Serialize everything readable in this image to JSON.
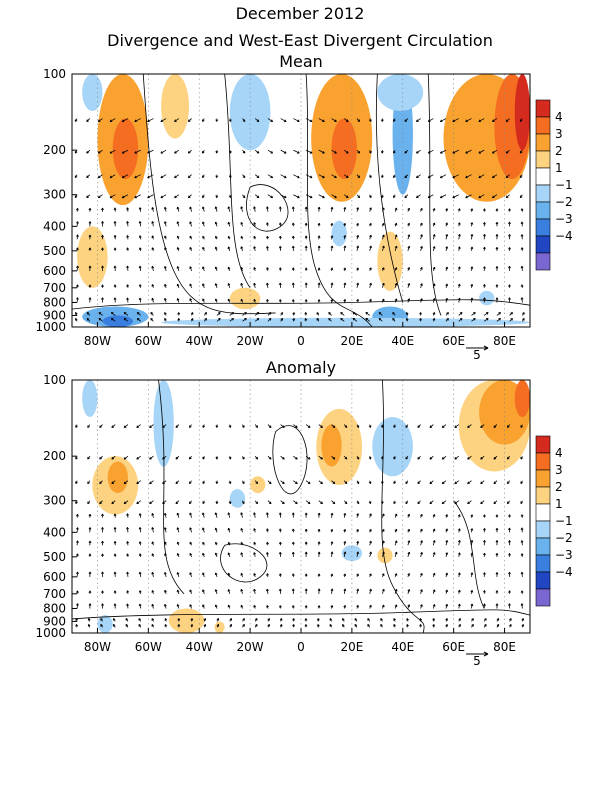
{
  "title_line1": "December 2012",
  "title_line2": "Divergence and West-East Divergent Circulation",
  "chart_data": [
    {
      "type": "heatmap",
      "panel_title": "Mean",
      "xticks": [
        "80W",
        "60W",
        "40W",
        "20W",
        "0",
        "20E",
        "40E",
        "60E",
        "80E"
      ],
      "xtick_values": [
        -80,
        -60,
        -40,
        -20,
        0,
        20,
        40,
        60,
        80
      ],
      "xlim": [
        -90,
        90
      ],
      "yticks": [
        "100",
        "200",
        "300",
        "400",
        "500",
        "600",
        "700",
        "800",
        "900",
        "1000"
      ],
      "ytick_values": [
        100,
        200,
        300,
        400,
        500,
        600,
        700,
        800,
        900,
        1000
      ],
      "ylim": [
        100,
        1000
      ],
      "y_scale": "log",
      "colorbar_labels": [
        "4",
        "3",
        "2",
        "1",
        "−1",
        "−2",
        "−3",
        "−4"
      ],
      "colorbar_colors": [
        "#d52b1e",
        "#f46d21",
        "#f9a230",
        "#fdd381",
        "#ffffff",
        "#a6d5f7",
        "#6ab2ee",
        "#3a7fe0",
        "#2046c4",
        "#7a67d1"
      ],
      "reference_vector": "5",
      "regions": [
        {
          "x": [
            -80,
            -60
          ],
          "y": [
            100,
            330
          ],
          "level": 2
        },
        {
          "x": [
            -74,
            -64
          ],
          "y": [
            150,
            260
          ],
          "level": 3
        },
        {
          "x": [
            -55,
            -44
          ],
          "y": [
            100,
            180
          ],
          "level": 1
        },
        {
          "x": [
            -86,
            -78
          ],
          "y": [
            100,
            140
          ],
          "level": -1
        },
        {
          "x": [
            -28,
            -12
          ],
          "y": [
            100,
            200
          ],
          "level": -1
        },
        {
          "x": [
            4,
            28
          ],
          "y": [
            100,
            320
          ],
          "level": 2
        },
        {
          "x": [
            12,
            22
          ],
          "y": [
            150,
            260
          ],
          "level": 3
        },
        {
          "x": [
            36,
            44
          ],
          "y": [
            100,
            300
          ],
          "level": -2
        },
        {
          "x": [
            30,
            48
          ],
          "y": [
            100,
            140
          ],
          "level": -1
        },
        {
          "x": [
            56,
            90
          ],
          "y": [
            100,
            320
          ],
          "level": 2
        },
        {
          "x": [
            76,
            90
          ],
          "y": [
            100,
            260
          ],
          "level": 3
        },
        {
          "x": [
            84,
            90
          ],
          "y": [
            100,
            200
          ],
          "level": 4
        },
        {
          "x": [
            -88,
            -76
          ],
          "y": [
            400,
            700
          ],
          "level": 1
        },
        {
          "x": [
            12,
            18
          ],
          "y": [
            380,
            480
          ],
          "level": -1
        },
        {
          "x": [
            30,
            40
          ],
          "y": [
            420,
            720
          ],
          "level": 1
        },
        {
          "x": [
            -28,
            -16
          ],
          "y": [
            700,
            850
          ],
          "level": 1
        },
        {
          "x": [
            -86,
            -60
          ],
          "y": [
            830,
            1000
          ],
          "level": -2
        },
        {
          "x": [
            -78,
            -66
          ],
          "y": [
            900,
            1000
          ],
          "level": -3
        },
        {
          "x": [
            28,
            42
          ],
          "y": [
            830,
            1000
          ],
          "level": -2
        },
        {
          "x": [
            -55,
            90
          ],
          "y": [
            920,
            1000
          ],
          "level": -1
        },
        {
          "x": [
            70,
            76
          ],
          "y": [
            720,
            820
          ],
          "level": -1
        }
      ]
    },
    {
      "type": "heatmap",
      "panel_title": "Anomaly",
      "xticks": [
        "80W",
        "60W",
        "40W",
        "20W",
        "0",
        "20E",
        "40E",
        "60E",
        "80E"
      ],
      "xtick_values": [
        -80,
        -60,
        -40,
        -20,
        0,
        20,
        40,
        60,
        80
      ],
      "xlim": [
        -90,
        90
      ],
      "yticks": [
        "100",
        "200",
        "300",
        "400",
        "500",
        "600",
        "700",
        "800",
        "900",
        "1000"
      ],
      "ytick_values": [
        100,
        200,
        300,
        400,
        500,
        600,
        700,
        800,
        900,
        1000
      ],
      "ylim": [
        100,
        1000
      ],
      "y_scale": "log",
      "colorbar_labels": [
        "4",
        "3",
        "2",
        "1",
        "−1",
        "−2",
        "−3",
        "−4"
      ],
      "colorbar_colors": [
        "#d52b1e",
        "#f46d21",
        "#f9a230",
        "#fdd381",
        "#ffffff",
        "#a6d5f7",
        "#6ab2ee",
        "#3a7fe0",
        "#2046c4",
        "#7a67d1"
      ],
      "reference_vector": "5",
      "regions": [
        {
          "x": [
            -86,
            -80
          ],
          "y": [
            100,
            140
          ],
          "level": -1
        },
        {
          "x": [
            -58,
            -50
          ],
          "y": [
            100,
            220
          ],
          "level": -1
        },
        {
          "x": [
            -82,
            -64
          ],
          "y": [
            200,
            340
          ],
          "level": 1
        },
        {
          "x": [
            -76,
            -68
          ],
          "y": [
            210,
            280
          ],
          "level": 2
        },
        {
          "x": [
            -20,
            -14
          ],
          "y": [
            240,
            280
          ],
          "level": 1
        },
        {
          "x": [
            -28,
            -22
          ],
          "y": [
            270,
            320
          ],
          "level": -1
        },
        {
          "x": [
            6,
            24
          ],
          "y": [
            130,
            260
          ],
          "level": 1
        },
        {
          "x": [
            8,
            16
          ],
          "y": [
            150,
            220
          ],
          "level": 2
        },
        {
          "x": [
            28,
            44
          ],
          "y": [
            140,
            240
          ],
          "level": -1
        },
        {
          "x": [
            62,
            90
          ],
          "y": [
            100,
            230
          ],
          "level": 1
        },
        {
          "x": [
            70,
            90
          ],
          "y": [
            100,
            180
          ],
          "level": 2
        },
        {
          "x": [
            84,
            90
          ],
          "y": [
            100,
            140
          ],
          "level": 3
        },
        {
          "x": [
            16,
            24
          ],
          "y": [
            450,
            520
          ],
          "level": -1
        },
        {
          "x": [
            30,
            36
          ],
          "y": [
            460,
            530
          ],
          "level": 1
        },
        {
          "x": [
            -52,
            -38
          ],
          "y": [
            800,
            1000
          ],
          "level": 1
        },
        {
          "x": [
            -80,
            -74
          ],
          "y": [
            850,
            1000
          ],
          "level": -1
        },
        {
          "x": [
            -34,
            -30
          ],
          "y": [
            900,
            1000
          ],
          "level": 1
        }
      ]
    }
  ]
}
